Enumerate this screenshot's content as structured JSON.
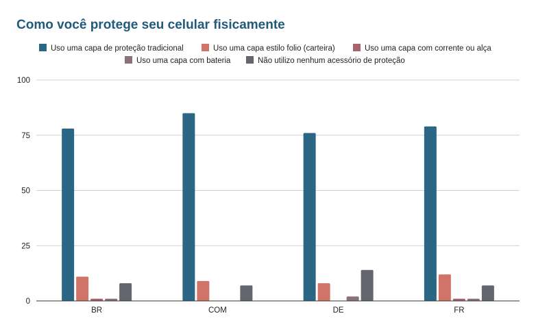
{
  "chart_data": {
    "type": "bar",
    "title": "Como você protege seu celular fisicamente",
    "xlabel": "",
    "ylabel": "",
    "categories": [
      "BR",
      "COM",
      "DE",
      "FR"
    ],
    "ylim": [
      0,
      100
    ],
    "yticks": [
      0,
      25,
      50,
      75,
      100
    ],
    "grid": true,
    "legend_position": "top",
    "series": [
      {
        "name": "Uso uma capa de proteção tradicional",
        "color": "#2b6684",
        "values": [
          78,
          85,
          76,
          79
        ]
      },
      {
        "name": "Uso uma capa estilo folio (carteira)",
        "color": "#d0746a",
        "values": [
          11,
          9,
          8,
          12
        ]
      },
      {
        "name": "Uso uma capa com corrente ou alça",
        "color": "#a8646a",
        "values": [
          1,
          0,
          0,
          1
        ]
      },
      {
        "name": "Uso uma capa com bateria",
        "color": "#8a7279",
        "values": [
          1,
          0,
          2,
          1
        ]
      },
      {
        "name": "Não utilizo nenhum acessório de proteção",
        "color": "#63656f",
        "values": [
          8,
          7,
          14,
          7
        ]
      }
    ]
  }
}
